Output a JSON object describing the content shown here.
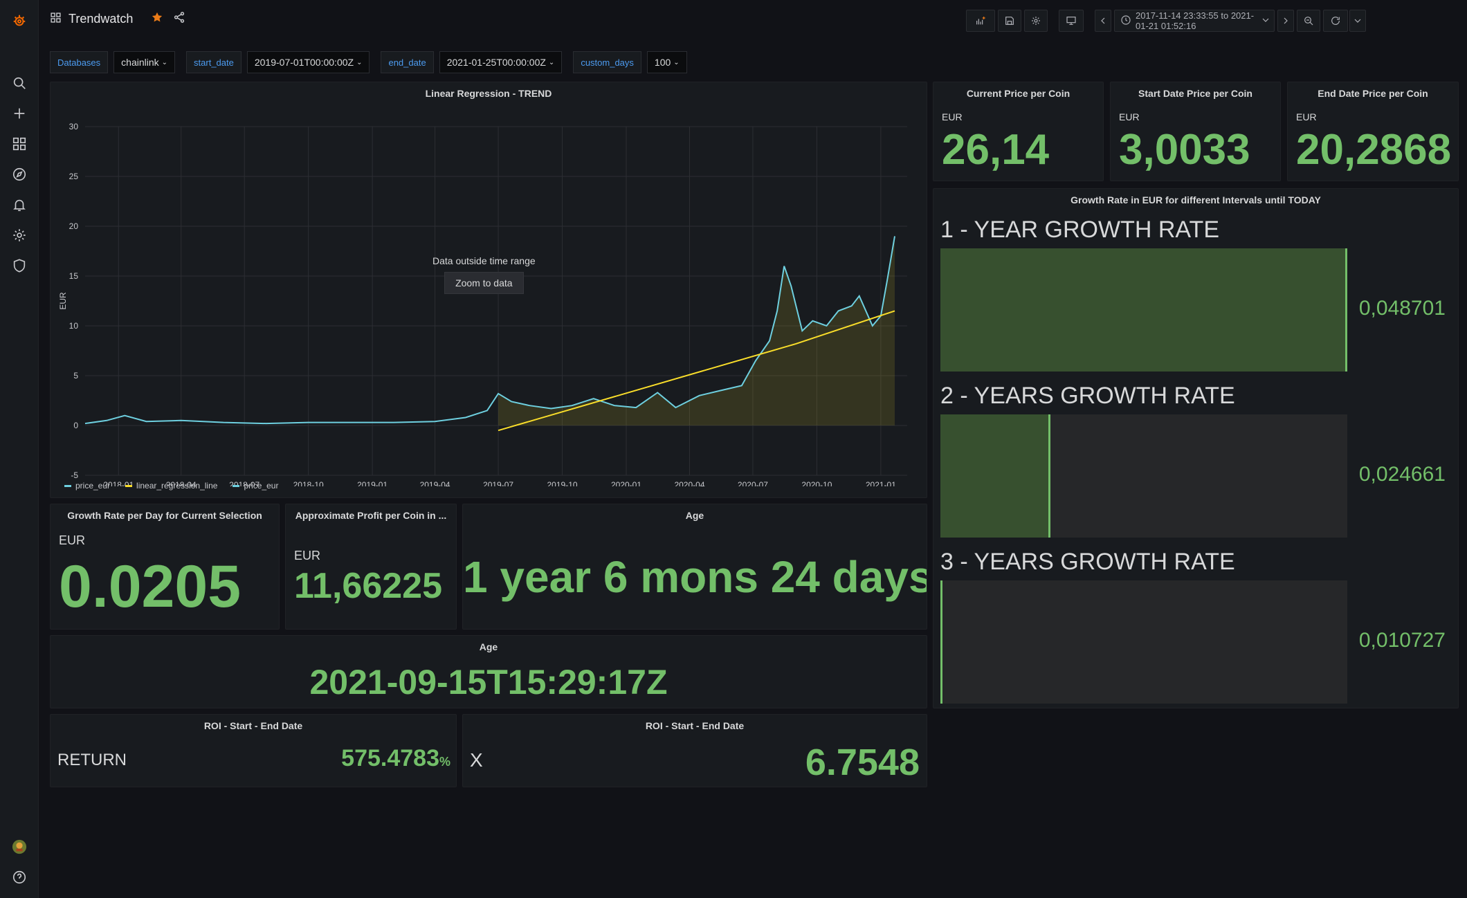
{
  "topbar": {
    "dashboard_title": "Trendwatch",
    "time_range": "2017-11-14 23:33:55 to 2021-01-21 01:52:16"
  },
  "variables": [
    {
      "label": "Databases",
      "value": "chainlink"
    },
    {
      "label": "start_date",
      "value": "2019-07-01T00:00:00Z"
    },
    {
      "label": "end_date",
      "value": "2021-01-25T00:00:00Z"
    },
    {
      "label": "custom_days",
      "value": "100"
    }
  ],
  "trend_panel": {
    "title": "Linear Regression - TREND",
    "overlay_text": "Data outside time range",
    "zoom_button": "Zoom to data",
    "legend": [
      "price_eur",
      "linear_regression_line",
      "price_eur"
    ]
  },
  "chart_data": {
    "type": "line",
    "title": "Linear Regression - TREND",
    "ylabel": "EUR",
    "xlabel": "",
    "ylim": [
      -5,
      30
    ],
    "y_ticks": [
      "30",
      "25",
      "20",
      "15",
      "10",
      "5",
      "0",
      "-5"
    ],
    "x_ticks": [
      "2018-01",
      "2018-04",
      "2018-07",
      "2018-10",
      "2019-01",
      "2019-04",
      "2019-07",
      "2019-10",
      "2020-01",
      "2020-04",
      "2020-07",
      "2020-10",
      "2021-01"
    ],
    "grid": true,
    "legend_position": "bottom-left",
    "colors": {
      "price": "#6ed0e0",
      "regression": "#fade2a"
    },
    "series": [
      {
        "name": "price_eur",
        "x": [
          "2017-11-14",
          "2017-12-15",
          "2018-01-10",
          "2018-02-10",
          "2018-04-01",
          "2018-06-01",
          "2018-08-01",
          "2018-10-01",
          "2018-12-01",
          "2019-02-01",
          "2019-04-01",
          "2019-05-15",
          "2019-06-15",
          "2019-07-01",
          "2019-07-20",
          "2019-08-15",
          "2019-09-15",
          "2019-10-15",
          "2019-11-15",
          "2019-12-15",
          "2020-01-15",
          "2020-02-15",
          "2020-03-12",
          "2020-04-15",
          "2020-05-15",
          "2020-06-15",
          "2020-07-05",
          "2020-07-25",
          "2020-08-05",
          "2020-08-15",
          "2020-08-25",
          "2020-09-10",
          "2020-09-25",
          "2020-10-15",
          "2020-11-01",
          "2020-11-20",
          "2020-12-01",
          "2020-12-20",
          "2021-01-01",
          "2021-01-10",
          "2021-01-21"
        ],
        "values": [
          0.2,
          0.5,
          1.0,
          0.4,
          0.5,
          0.3,
          0.2,
          0.3,
          0.3,
          0.3,
          0.4,
          0.8,
          1.5,
          3.2,
          2.4,
          2.0,
          1.7,
          2.0,
          2.7,
          2.0,
          1.8,
          3.3,
          1.8,
          3.0,
          3.5,
          4.0,
          6.5,
          8.5,
          11.5,
          16.0,
          14.0,
          9.5,
          10.5,
          10.0,
          11.5,
          12.0,
          13.0,
          10.0,
          11.0,
          14.5,
          19.0
        ]
      },
      {
        "name": "linear_regression_line",
        "x": [
          "2019-07-01",
          "2020-09-01",
          "2021-01-21"
        ],
        "values": [
          -0.5,
          8.2,
          11.5
        ]
      }
    ]
  },
  "stat_current": {
    "title": "Current Price per Coin",
    "unit": "EUR",
    "value": "26,14"
  },
  "stat_start": {
    "title": "Start Date Price per Coin",
    "unit": "EUR",
    "value": "3,0033"
  },
  "stat_end": {
    "title": "End Date Price per Coin",
    "unit": "EUR",
    "value": "20,2868"
  },
  "growth_panel": {
    "title": "Growth Rate in EUR for different Intervals until TODAY",
    "bars": [
      {
        "label": "1 - YEAR GROWTH RATE",
        "value": "0,048701",
        "fraction": 1.0
      },
      {
        "label": "2 - YEARS GROWTH RATE",
        "value": "0,024661",
        "fraction": 0.27
      },
      {
        "label": "3 - YEARS GROWTH RATE",
        "value": "0,010727",
        "fraction": 0.0
      }
    ]
  },
  "growth_day": {
    "title": "Growth Rate per Day for Current Selection",
    "unit": "EUR",
    "value": "0.0205"
  },
  "profit": {
    "title": "Approximate Profit per Coin in ...",
    "unit": "EUR",
    "value": "11,66225"
  },
  "age1": {
    "title": "Age",
    "value": "1 year 6 mons 24 days"
  },
  "age2": {
    "title": "Age",
    "value": "2021-09-15T15:29:17Z"
  },
  "roi1": {
    "title": "ROI - Start - End Date",
    "prefix": "RETURN",
    "value": "575.4783",
    "suffix": "%"
  },
  "roi2": {
    "title": "ROI - Start - End Date",
    "prefix": "X",
    "value": "6.7548"
  }
}
